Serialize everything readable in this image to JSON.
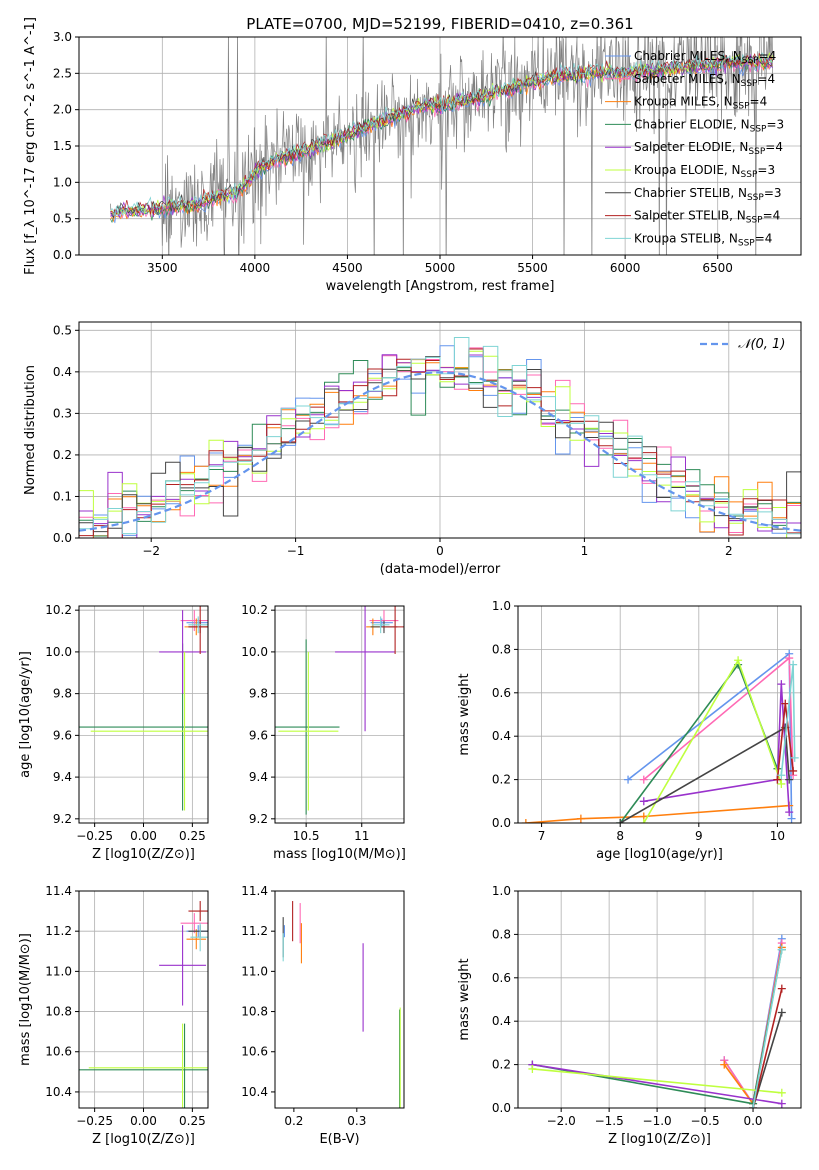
{
  "figure_title": "PLATE=0700, MJD=52199, FIBERID=0410, z=0.361",
  "model_names": [
    "Chabrier MILES",
    "Salpeter MILES",
    "Kroupa MILES",
    "Chabrier ELODIE",
    "Salpeter ELODIE",
    "Kroupa ELODIE",
    "Chabrier STELIB",
    "Salpeter STELIB",
    "Kroupa STELIB"
  ],
  "model_nssp": [
    4,
    4,
    4,
    3,
    4,
    3,
    3,
    4,
    4
  ],
  "model_colors": [
    "#6495ed",
    "#ff69b4",
    "#ff7f0e",
    "#2e8b57",
    "#9932cc",
    "#bfff3f",
    "#444444",
    "#b22222",
    "#7fd4d4"
  ],
  "chart_data": [
    {
      "type": "line",
      "title": "PLATE=0700, MJD=52199, FIBERID=0410, z=0.361",
      "xlabel": "wavelength [Angstrom, rest frame]",
      "ylabel": "Flux [f_λ 10^-17 erg cm^-2 s^-1 A^-1]",
      "xlim": [
        3050,
        6950
      ],
      "ylim": [
        0,
        3.0
      ],
      "xticks": [
        3500,
        4000,
        4500,
        5000,
        5500,
        6000,
        6500
      ],
      "yticks": [
        0,
        0.5,
        1.0,
        1.5,
        2.0,
        2.5,
        3.0
      ],
      "grid": true,
      "legend": "upper right",
      "spectrum_anchors": {
        "x": [
          3220,
          3300,
          3500,
          3700,
          3800,
          3900,
          3960,
          4000,
          4100,
          4300,
          4500,
          4700,
          4900,
          5000,
          5200,
          5400,
          5600,
          5800,
          6000,
          6200,
          6400,
          6600,
          6800
        ],
        "y": [
          0.55,
          0.6,
          0.65,
          0.7,
          0.8,
          0.85,
          1.0,
          1.15,
          1.3,
          1.45,
          1.65,
          1.85,
          2.05,
          2.05,
          2.15,
          2.3,
          2.45,
          2.5,
          2.5,
          2.55,
          2.6,
          2.65,
          2.65
        ]
      }
    },
    {
      "type": "bar",
      "xlabel": "(data-model)/error",
      "ylabel": "Normed distribution",
      "xlim": [
        -2.5,
        2.5
      ],
      "ylim": [
        0,
        0.52
      ],
      "xticks": [
        -2,
        -1,
        0,
        1,
        2
      ],
      "yticks": [
        0.0,
        0.1,
        0.2,
        0.3,
        0.4,
        0.5
      ],
      "grid": true,
      "legend": "upper right",
      "reference_curve": "𝒩(0, 1)",
      "bin_width": 0.1
    },
    {
      "type": "scatter",
      "xlabel": "Z [log10(Z/Z⊙)]",
      "ylabel": "age  [log10(age/yr)]",
      "xlim": [
        -0.33,
        0.33
      ],
      "ylim": [
        9.18,
        10.22
      ],
      "xticks": [
        -0.25,
        0.0,
        0.25
      ],
      "xtick_labels": [
        "−0.25",
        "0.00",
        "0.25"
      ],
      "yticks": [
        9.2,
        9.4,
        9.6,
        9.8,
        10.0,
        10.2
      ],
      "grid": true,
      "points": [
        {
          "x": 0.28,
          "y": 10.14,
          "xerr": 0.06,
          "yerr": 0.02
        },
        {
          "x": 0.26,
          "y": 10.15,
          "xerr": 0.07,
          "yerr": 0.05
        },
        {
          "x": 0.27,
          "y": 10.12,
          "xerr": 0.06,
          "yerr": 0.04
        },
        {
          "x": 0.2,
          "y": 9.64,
          "xerr": 0.55,
          "yerr": 0.4
        },
        {
          "x": 0.2,
          "y": 10.0,
          "xerr": 0.12,
          "yerr": 0.2
        },
        {
          "x": 0.21,
          "y": 9.62,
          "xerr": 0.48,
          "yerr": 0.38
        },
        {
          "x": 0.29,
          "y": 10.12,
          "xerr": 0.06,
          "yerr": 0.03
        },
        {
          "x": 0.29,
          "y": 10.12,
          "xerr": 0.06,
          "yerr": 0.13
        },
        {
          "x": 0.28,
          "y": 10.13,
          "xerr": 0.05,
          "yerr": 0.04
        }
      ]
    },
    {
      "type": "scatter",
      "xlabel": "mass [log10(M/M⊙)]",
      "ylabel": "",
      "xlim": [
        10.22,
        11.38
      ],
      "ylim": [
        9.18,
        10.22
      ],
      "xticks": [
        10.5,
        11.0
      ],
      "yticks": [
        9.2,
        9.4,
        9.6,
        9.8,
        10.0,
        10.2
      ],
      "grid": true,
      "points": [
        {
          "x": 11.18,
          "y": 10.14,
          "xerr": 0.1,
          "yerr": 0.02
        },
        {
          "x": 11.2,
          "y": 10.15,
          "xerr": 0.13,
          "yerr": 0.05
        },
        {
          "x": 11.1,
          "y": 10.12,
          "xerr": 0.06,
          "yerr": 0.04
        },
        {
          "x": 10.5,
          "y": 9.64,
          "xerr": 0.3,
          "yerr": 0.42
        },
        {
          "x": 11.03,
          "y": 10.0,
          "xerr": 0.27,
          "yerr": 0.38
        },
        {
          "x": 10.52,
          "y": 9.62,
          "xerr": 0.27,
          "yerr": 0.38
        },
        {
          "x": 11.2,
          "y": 10.12,
          "xerr": 0.12,
          "yerr": 0.03
        },
        {
          "x": 11.3,
          "y": 10.12,
          "xerr": 0.12,
          "yerr": 0.13
        },
        {
          "x": 11.17,
          "y": 10.13,
          "xerr": 0.08,
          "yerr": 0.04
        }
      ]
    },
    {
      "type": "line",
      "xlabel": "age  [log10(age/yr)]",
      "ylabel": "mass weight",
      "xlim": [
        6.7,
        10.3
      ],
      "ylim": [
        0,
        1.0
      ],
      "xticks": [
        7,
        8,
        9,
        10
      ],
      "yticks": [
        0.0,
        0.2,
        0.4,
        0.6,
        0.8,
        1.0
      ],
      "grid": true,
      "series": [
        {
          "x": [
            8.1,
            10.15,
            10.18
          ],
          "y": [
            0.2,
            0.78,
            0.02
          ]
        },
        {
          "x": [
            8.3,
            10.15,
            10.2
          ],
          "y": [
            0.2,
            0.76,
            0.22
          ]
        },
        {
          "x": [
            6.8,
            7.5,
            8.3,
            10.15
          ],
          "y": [
            0.0,
            0.02,
            0.03,
            0.08
          ]
        },
        {
          "x": [
            8.0,
            9.5,
            10.0
          ],
          "y": [
            0.0,
            0.73,
            0.25
          ]
        },
        {
          "x": [
            8.3,
            10.0,
            10.05,
            10.15
          ],
          "y": [
            0.1,
            0.2,
            0.64,
            0.05
          ]
        },
        {
          "x": [
            8.3,
            9.5,
            10.05
          ],
          "y": [
            0.0,
            0.75,
            0.18
          ]
        },
        {
          "x": [
            8.0,
            10.1,
            10.15
          ],
          "y": [
            0.0,
            0.44,
            0.2
          ]
        },
        {
          "x": [
            10.0,
            10.1,
            10.2
          ],
          "y": [
            0.2,
            0.55,
            0.24
          ]
        },
        {
          "x": [
            10.05,
            10.2,
            10.22
          ],
          "y": [
            0.22,
            0.73,
            0.3
          ]
        }
      ]
    },
    {
      "type": "scatter",
      "xlabel": "Z [log10(Z/Z⊙)]",
      "ylabel": "mass [log10(M/M⊙)]",
      "xlim": [
        -0.33,
        0.33
      ],
      "ylim": [
        10.32,
        11.4
      ],
      "xticks": [
        -0.25,
        0.0,
        0.25
      ],
      "xtick_labels": [
        "−0.25",
        "0.00",
        "0.25"
      ],
      "yticks": [
        10.4,
        10.6,
        10.8,
        11.0,
        11.2,
        11.4
      ],
      "grid": true,
      "points": [
        {
          "x": 0.28,
          "y": 11.2,
          "xerr": 0.06,
          "yerr": 0.03
        },
        {
          "x": 0.26,
          "y": 11.24,
          "xerr": 0.07,
          "yerr": 0.05
        },
        {
          "x": 0.27,
          "y": 11.16,
          "xerr": 0.05,
          "yerr": 0.05
        },
        {
          "x": 0.21,
          "y": 10.51,
          "xerr": 0.55,
          "yerr": 0.23
        },
        {
          "x": 0.2,
          "y": 11.03,
          "xerr": 0.12,
          "yerr": 0.2
        },
        {
          "x": 0.2,
          "y": 10.52,
          "xerr": 0.48,
          "yerr": 0.22
        },
        {
          "x": 0.29,
          "y": 11.2,
          "xerr": 0.06,
          "yerr": 0.03
        },
        {
          "x": 0.29,
          "y": 11.3,
          "xerr": 0.06,
          "yerr": 0.05
        },
        {
          "x": 0.29,
          "y": 11.17,
          "xerr": 0.05,
          "yerr": 0.07
        }
      ]
    },
    {
      "type": "scatter",
      "xlabel": "E(B-V)",
      "ylabel": "",
      "xlim": [
        0.17,
        0.375
      ],
      "ylim": [
        10.32,
        11.4
      ],
      "xticks": [
        0.2,
        0.3
      ],
      "yticks": [
        10.4,
        10.6,
        10.8,
        11.0,
        11.2,
        11.4
      ],
      "grid": false,
      "points": [
        {
          "x": 0.185,
          "y": 11.2,
          "yerr": 0.03
        },
        {
          "x": 0.21,
          "y": 11.24,
          "yerr": 0.1
        },
        {
          "x": 0.212,
          "y": 11.14,
          "yerr": 0.1
        },
        {
          "x": 0.368,
          "y": 10.51,
          "yerr": 0.3
        },
        {
          "x": 0.31,
          "y": 10.92,
          "yerr": 0.22
        },
        {
          "x": 0.369,
          "y": 10.55,
          "yerr": 0.27
        },
        {
          "x": 0.183,
          "y": 11.17,
          "yerr": 0.1
        },
        {
          "x": 0.198,
          "y": 11.25,
          "yerr": 0.1
        },
        {
          "x": 0.183,
          "y": 11.12,
          "yerr": 0.07
        }
      ]
    },
    {
      "type": "line",
      "xlabel": "Z [log10(Z/Z⊙)]",
      "ylabel": "mass weight",
      "xlim": [
        -2.45,
        0.5
      ],
      "ylim": [
        0,
        1.0
      ],
      "xticks": [
        -2.0,
        -1.5,
        -1.0,
        -0.5,
        0.0
      ],
      "xtick_labels": [
        "−2.0",
        "−1.5",
        "−1.0",
        "−0.5",
        "0.0"
      ],
      "yticks": [
        0.0,
        0.2,
        0.4,
        0.6,
        0.8,
        1.0
      ],
      "grid": true,
      "series": [
        {
          "x": [
            -0.3,
            0.0,
            0.3
          ],
          "y": [
            0.22,
            0.02,
            0.78
          ]
        },
        {
          "x": [
            -0.3,
            0.0,
            0.3
          ],
          "y": [
            0.22,
            0.02,
            0.76
          ]
        },
        {
          "x": [
            -0.3,
            0.0,
            0.3
          ],
          "y": [
            0.2,
            0.02,
            0.74
          ]
        },
        {
          "x": [
            -2.3,
            0.0,
            0.3
          ],
          "y": [
            0.2,
            0.02,
            0.73
          ]
        },
        {
          "x": [
            -2.3,
            0.3
          ],
          "y": [
            0.2,
            0.02
          ]
        },
        {
          "x": [
            -2.3,
            0.3
          ],
          "y": [
            0.18,
            0.07
          ]
        },
        {
          "x": [
            0.0,
            0.3
          ],
          "y": [
            0.0,
            0.44
          ]
        },
        {
          "x": [
            0.0,
            0.3
          ],
          "y": [
            0.0,
            0.55
          ]
        },
        {
          "x": [
            0.0,
            0.3
          ],
          "y": [
            0.0,
            0.73
          ]
        }
      ]
    }
  ]
}
